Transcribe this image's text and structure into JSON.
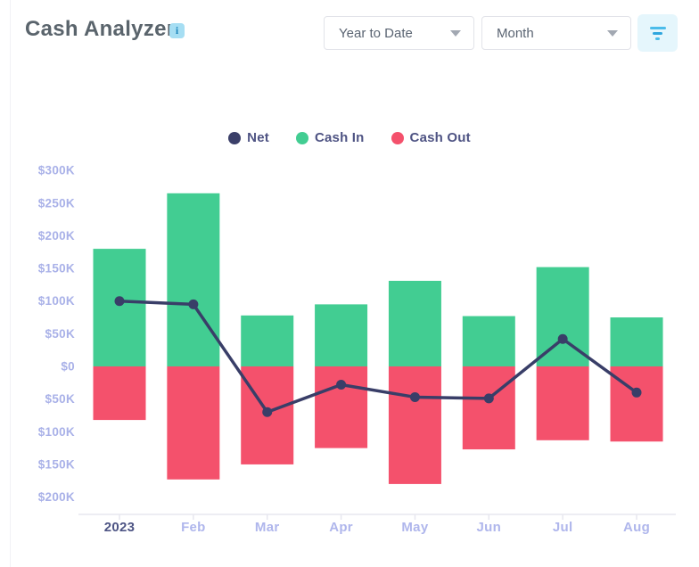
{
  "header": {
    "title": "Cash Analyzer",
    "info_icon_glyph": "i"
  },
  "controls": {
    "period_select": {
      "value": "Year to Date"
    },
    "granularity_select": {
      "value": "Month"
    },
    "filter_button": {
      "icon": "filter-icon",
      "icon_color": "#4cbcea",
      "background": "#e5f6fc"
    }
  },
  "legend": {
    "items": [
      {
        "label": "Net",
        "color": "#3b3f69"
      },
      {
        "label": "Cash In",
        "color": "#42cd92"
      },
      {
        "label": "Cash Out",
        "color": "#f4516c"
      }
    ]
  },
  "chart_data": {
    "type": "combo",
    "title": "Cash Analyzer",
    "categories": [
      "2023",
      "Feb",
      "Mar",
      "Apr",
      "May",
      "Jun",
      "Jul",
      "Aug"
    ],
    "series": [
      {
        "name": "Cash In",
        "chart": "bar",
        "color": "#42cd92",
        "values": [
          180000,
          265000,
          78000,
          95000,
          131000,
          77000,
          152000,
          75000
        ]
      },
      {
        "name": "Cash Out",
        "chart": "bar",
        "color": "#f4516c",
        "values": [
          -82000,
          -173000,
          -150000,
          -125000,
          -180000,
          -127000,
          -113000,
          -115000
        ]
      },
      {
        "name": "Net",
        "chart": "line",
        "color": "#393e68",
        "values": [
          100000,
          95000,
          -70000,
          -28000,
          -47000,
          -49000,
          42000,
          -40000
        ]
      }
    ],
    "y_axis": {
      "ticks": [
        {
          "label": "$300K",
          "value": 300000
        },
        {
          "label": "$250K",
          "value": 250000
        },
        {
          "label": "$200K",
          "value": 200000
        },
        {
          "label": "$150K",
          "value": 150000
        },
        {
          "label": "$100K",
          "value": 100000
        },
        {
          "label": "$50K",
          "value": 50000
        },
        {
          "label": "$0",
          "value": 0
        },
        {
          "label": "$50K",
          "value": -50000
        },
        {
          "label": "$100K",
          "value": -100000
        },
        {
          "label": "$150K",
          "value": -150000
        },
        {
          "label": "$200K",
          "value": -200000
        }
      ],
      "label_color": "#a9b1e8"
    },
    "x_axis": {
      "labels": [
        "2023",
        "Feb",
        "Mar",
        "Apr",
        "May",
        "Jun",
        "Jul",
        "Aug"
      ],
      "emphasized_label": "2023",
      "emphasized_color": "#4d5484",
      "label_color": "#afb6ec",
      "axis_line_color": "#e7e7ef"
    },
    "ylim": [
      -230000,
      320000
    ],
    "grid": false,
    "legend_position": "top",
    "legend_entries": [
      "Net",
      "Cash In",
      "Cash Out"
    ]
  }
}
